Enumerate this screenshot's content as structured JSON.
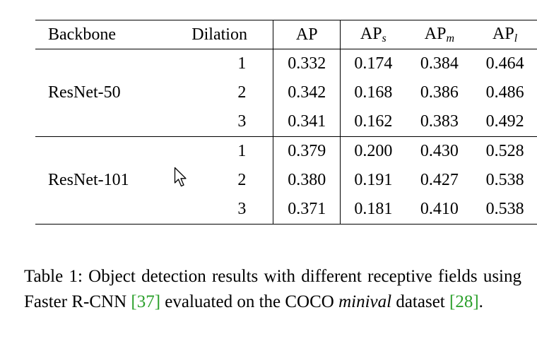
{
  "table": {
    "headers": {
      "backbone": "Backbone",
      "dilation": "Dilation",
      "ap": "AP",
      "ap_s": {
        "base": "AP",
        "sub": "s"
      },
      "ap_m": {
        "base": "AP",
        "sub": "m"
      },
      "ap_l": {
        "base": "AP",
        "sub": "l"
      }
    },
    "groups": [
      {
        "backbone": "ResNet-50",
        "rows": [
          {
            "dilation": "1",
            "ap": "0.332",
            "ap_s": "0.174",
            "ap_m": "0.384",
            "ap_l": "0.464"
          },
          {
            "dilation": "2",
            "ap": "0.342",
            "ap_s": "0.168",
            "ap_m": "0.386",
            "ap_l": "0.486"
          },
          {
            "dilation": "3",
            "ap": "0.341",
            "ap_s": "0.162",
            "ap_m": "0.383",
            "ap_l": "0.492"
          }
        ]
      },
      {
        "backbone": "ResNet-101",
        "rows": [
          {
            "dilation": "1",
            "ap": "0.379",
            "ap_s": "0.200",
            "ap_m": "0.430",
            "ap_l": "0.528"
          },
          {
            "dilation": "2",
            "ap": "0.380",
            "ap_s": "0.191",
            "ap_m": "0.427",
            "ap_l": "0.538"
          },
          {
            "dilation": "3",
            "ap": "0.371",
            "ap_s": "0.181",
            "ap_m": "0.410",
            "ap_l": "0.538"
          }
        ]
      }
    ]
  },
  "caption": {
    "label": "Table 1:",
    "text_1": "Object detection results with different receptive fields using Faster R-CNN",
    "cite_1": "[37]",
    "text_2": "evaluated on the COCO",
    "italic": "minival",
    "text_3": "dataset",
    "cite_2": "[28]",
    "end": "."
  },
  "cursor": {
    "icon": "mouse-pointer-icon"
  }
}
